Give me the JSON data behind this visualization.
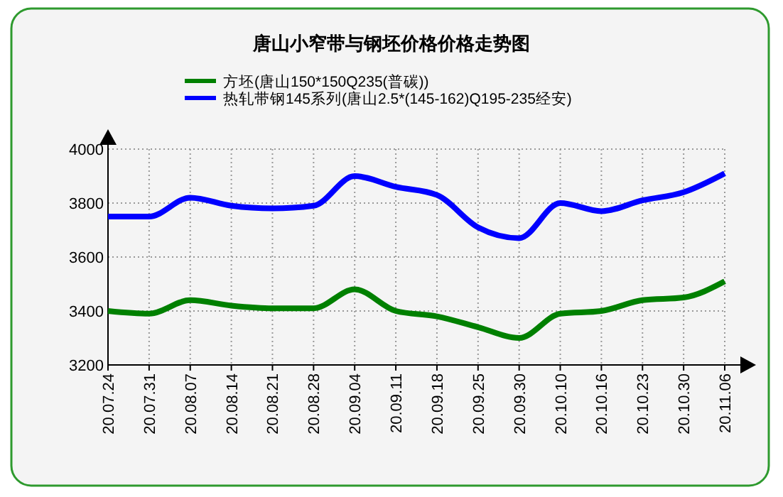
{
  "chart_data": {
    "type": "line",
    "title": "唐山小窄带与钢坯价格价格走势图",
    "categories": [
      "20.07.24",
      "20.07.31",
      "20.08.07",
      "20.08.14",
      "20.08.21",
      "20.08.28",
      "20.09.04",
      "20.09.11",
      "20.09.18",
      "20.09.25",
      "20.09.30",
      "20.10.10",
      "20.10.16",
      "20.10.23",
      "20.10.30",
      "20.11.06"
    ],
    "series": [
      {
        "name": "方坯(唐山150*150Q235(普碳))",
        "color": "#008000",
        "values": [
          3400,
          3390,
          3440,
          3420,
          3410,
          3410,
          3480,
          3400,
          3380,
          3340,
          3300,
          3390,
          3400,
          3440,
          3450,
          3510
        ]
      },
      {
        "name": "热轧带钢145系列(唐山2.5*(145-162)Q195-235经安)",
        "color": "#0000ff",
        "values": [
          3750,
          3750,
          3820,
          3790,
          3780,
          3790,
          3900,
          3860,
          3830,
          3710,
          3670,
          3800,
          3770,
          3810,
          3840,
          3910
        ]
      }
    ],
    "ylim": [
      3200,
      4000
    ],
    "yticks": [
      3200,
      3400,
      3600,
      3800,
      4000
    ],
    "grid": true,
    "legend": "top",
    "marker": "none",
    "line_style": "solid"
  }
}
